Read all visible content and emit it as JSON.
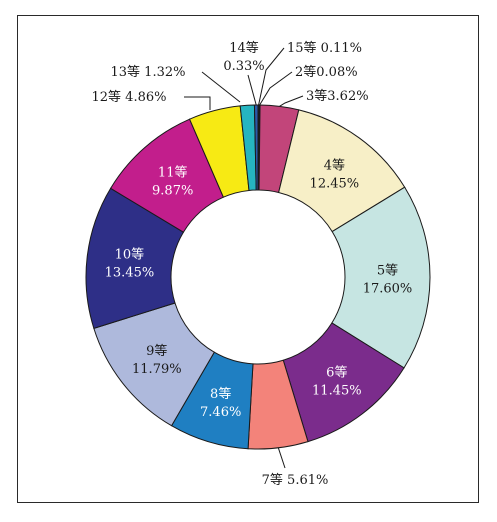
{
  "chart_data": {
    "type": "pie",
    "donut": true,
    "slices": [
      {
        "label": "15等",
        "value": 0.11,
        "text": "15等 0.11%",
        "color": "#3b6db3"
      },
      {
        "label": "2等",
        "value": 0.08,
        "text": "2等0.08%",
        "color": "#6b3fa0"
      },
      {
        "label": "3等",
        "value": 3.62,
        "text": "3等3.62%",
        "color": "#c2457a"
      },
      {
        "label": "4等",
        "value": 12.45,
        "line1": "4等",
        "line2": "12.45%",
        "color": "#f7efc7"
      },
      {
        "label": "5等",
        "value": 17.6,
        "line1": "5等",
        "line2": "17.60%",
        "color": "#c6e5e2"
      },
      {
        "label": "6等",
        "value": 11.45,
        "line1": "6等",
        "line2": "11.45%",
        "color": "#7b2c8c"
      },
      {
        "label": "7等",
        "value": 5.61,
        "text": "7等 5.61%",
        "color": "#f3837a"
      },
      {
        "label": "8等",
        "value": 7.46,
        "line1": "8等",
        "line2": "7.46%",
        "color": "#1f7fc2"
      },
      {
        "label": "9等",
        "value": 11.79,
        "line1": "9等",
        "line2": "11.79%",
        "color": "#aeb9dc"
      },
      {
        "label": "10等",
        "value": 13.45,
        "line1": "10等",
        "line2": "13.45%",
        "color": "#2e2f87"
      },
      {
        "label": "11等",
        "value": 9.87,
        "line1": "11等",
        "line2": "9.87%",
        "color": "#c21e8c"
      },
      {
        "label": "12等",
        "value": 4.86,
        "text": "12等 4.86%",
        "color": "#f7ea14"
      },
      {
        "label": "13等",
        "value": 1.32,
        "text": "13等 1.32%",
        "color": "#26b5c0"
      },
      {
        "label": "14等",
        "value": 0.33,
        "line1": "14等",
        "line2": "0.33%",
        "color": "#2a5aa8"
      }
    ]
  }
}
